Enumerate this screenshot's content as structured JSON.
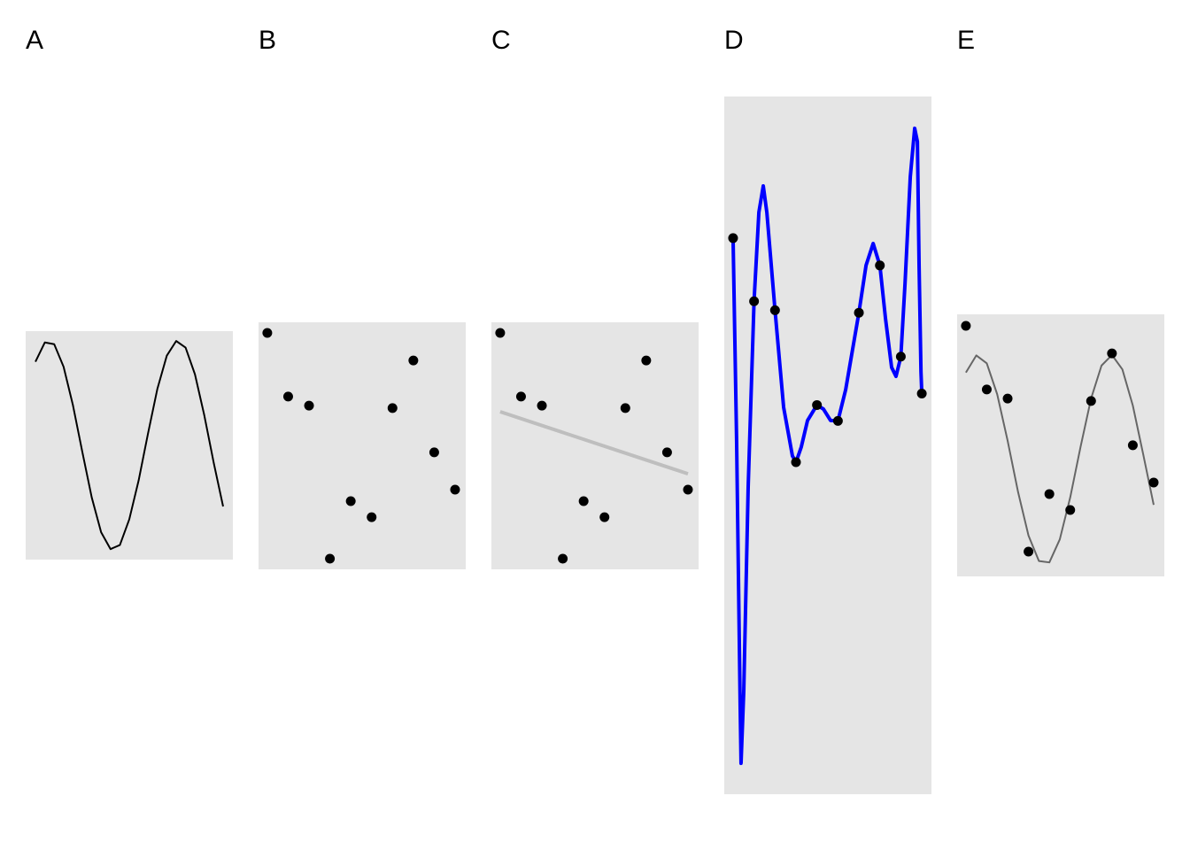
{
  "chart_data": [
    {
      "type": "line",
      "title": "A",
      "xlim": [
        -0.52,
        10.52
      ],
      "ylim": [
        -1.09,
        1.09
      ],
      "series": [
        {
          "mode": "line",
          "color": "#000000",
          "x": [
            0,
            0.5,
            1,
            1.5,
            2,
            2.5,
            3,
            3.5,
            4,
            4.5,
            5,
            5.5,
            6,
            6.5,
            7,
            7.5,
            8,
            8.5,
            9,
            9.5,
            10
          ],
          "values": [
            0.798,
            0.982,
            0.965,
            0.75,
            0.382,
            -0.064,
            -0.497,
            -0.829,
            -0.99,
            -0.951,
            -0.706,
            -0.334,
            0.115,
            0.541,
            0.856,
            0.996,
            0.933,
            0.678,
            0.285,
            -0.166,
            -0.583
          ]
        }
      ]
    },
    {
      "type": "scatter",
      "title": "B",
      "xlim": [
        0.58,
        10.51
      ],
      "ylim": [
        -0.47,
        10.47
      ],
      "series": [
        {
          "mode": "points",
          "color": "#000000",
          "x": [
            1,
            2,
            3,
            4,
            5,
            6,
            7,
            8,
            9,
            10
          ],
          "values": [
            10.0,
            7.18,
            6.78,
            0,
            2.55,
            1.84,
            6.67,
            8.78,
            4.71,
            3.06
          ]
        }
      ]
    },
    {
      "type": "scatter",
      "title": "C",
      "xlim": [
        0.58,
        10.51
      ],
      "ylim": [
        -0.47,
        10.47
      ],
      "series": [
        {
          "mode": "line",
          "color": "#bebebe",
          "x": [
            1,
            10
          ],
          "values": [
            6.51,
            3.76
          ]
        },
        {
          "mode": "points",
          "color": "#000000",
          "x": [
            1,
            2,
            3,
            4,
            5,
            6,
            7,
            8,
            9,
            10
          ],
          "values": [
            10.0,
            7.18,
            6.78,
            0,
            2.55,
            1.84,
            6.67,
            8.78,
            4.71,
            3.06
          ]
        }
      ]
    },
    {
      "type": "line",
      "title": "D",
      "xlim": [
        0.58,
        10.46
      ],
      "ylim": [
        -14.82,
        16.32
      ],
      "series": [
        {
          "mode": "line",
          "color": "#0000ff",
          "x": [
            1,
            1.17,
            1.34,
            1.38,
            1.51,
            1.72,
            2,
            2.23,
            2.44,
            2.61,
            3,
            3.41,
            3.83,
            4,
            4.25,
            4.55,
            5,
            5.31,
            5.65,
            6,
            6.37,
            6.66,
            7,
            7.34,
            7.68,
            8,
            8.27,
            8.56,
            8.77,
            9,
            9.2,
            9.45,
            9.66,
            9.79,
            9.87,
            9.96,
            10
          ],
          "values": [
            10.0,
            0.87,
            -10.99,
            -13.44,
            -10.2,
            -1.11,
            7.18,
            11.15,
            12.33,
            11.15,
            6.78,
            2.45,
            0.28,
            0,
            0.67,
            1.86,
            2.55,
            2.37,
            1.86,
            1.84,
            3.24,
            4.82,
            6.67,
            8.78,
            9.76,
            8.78,
            6.4,
            4.23,
            3.83,
            4.71,
            7.98,
            12.73,
            14.9,
            14.31,
            8.77,
            4.03,
            3.06
          ]
        },
        {
          "mode": "points",
          "color": "#000000",
          "x": [
            1,
            2,
            3,
            4,
            5,
            6,
            7,
            8,
            9,
            10
          ],
          "values": [
            10.0,
            7.18,
            6.78,
            0,
            2.55,
            1.84,
            6.67,
            8.78,
            4.71,
            3.06
          ]
        }
      ]
    },
    {
      "type": "line",
      "title": "E",
      "xlim": [
        0.58,
        10.51
      ],
      "ylim": [
        -1.1,
        10.51
      ],
      "series": [
        {
          "mode": "line",
          "color": "#666666",
          "x": [
            1,
            1.5,
            2,
            2.5,
            3,
            3.5,
            4,
            4.5,
            5,
            5.5,
            6,
            6.5,
            7,
            7.5,
            8,
            8.5,
            9,
            9.5,
            10
          ],
          "values": [
            7.93,
            8.69,
            8.34,
            6.97,
            4.91,
            2.64,
            0.71,
            -0.42,
            -0.48,
            0.54,
            2.4,
            4.66,
            6.78,
            8.24,
            8.71,
            8.07,
            6.47,
            4.3,
            2.07
          ]
        },
        {
          "mode": "points",
          "color": "#000000",
          "x": [
            1,
            2,
            3,
            4,
            5,
            6,
            7,
            8,
            9,
            10
          ],
          "values": [
            10.0,
            7.18,
            6.78,
            0,
            2.55,
            1.84,
            6.67,
            8.78,
            4.71,
            3.06
          ]
        }
      ]
    }
  ]
}
